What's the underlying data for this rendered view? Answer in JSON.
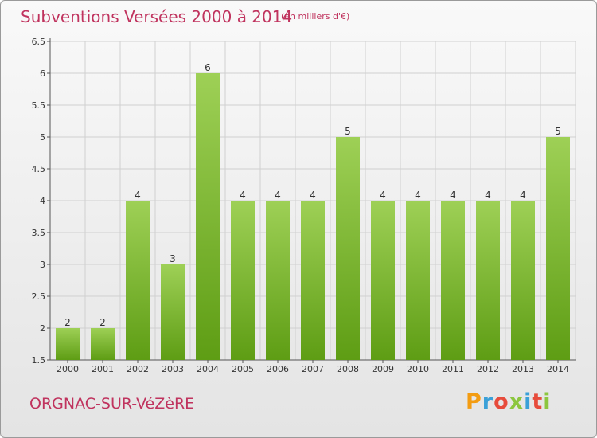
{
  "header": {
    "title": "Subventions Versées 2000 à 2014",
    "subtitle": "(en milliers d'€)"
  },
  "footer": {
    "town": "ORGNAC-SUR-VéZèRE",
    "logo_text": "Proxiti",
    "logo_colors": [
      "#f39c12",
      "#3aa0d8",
      "#e74c3c",
      "#8cc63f",
      "#3aa0d8",
      "#e74c3c",
      "#8cc63f"
    ]
  },
  "colors": {
    "title": "#c0335e",
    "bar_light": "#9ed056",
    "bar_dark": "#5e9d14",
    "grid": "#d0d0d0",
    "axis": "#555555"
  },
  "chart_data": {
    "type": "bar",
    "title": "Subventions Versées 2000 à 2014",
    "subtitle": "(en milliers d'€)",
    "categories": [
      "2000",
      "2001",
      "2002",
      "2003",
      "2004",
      "2005",
      "2006",
      "2007",
      "2008",
      "2009",
      "2010",
      "2011",
      "2012",
      "2013",
      "2014"
    ],
    "values": [
      2,
      2,
      4,
      3,
      6,
      4,
      4,
      4,
      5,
      4,
      4,
      4,
      4,
      4,
      5
    ],
    "data_labels": [
      "2",
      "2",
      "4",
      "3",
      "6",
      "4",
      "4",
      "4",
      "5",
      "4",
      "4",
      "4",
      "4",
      "4",
      "5"
    ],
    "ylim": [
      1.5,
      6.5
    ],
    "yticks": [
      1.5,
      2,
      2.5,
      3,
      3.5,
      4,
      4.5,
      5,
      5.5,
      6,
      6.5
    ],
    "ytick_labels": [
      "1.5",
      "2",
      "2.5",
      "3",
      "3.5",
      "4",
      "4.5",
      "5",
      "5.5",
      "6",
      "6.5"
    ],
    "grid": true,
    "xlabel": "",
    "ylabel": ""
  }
}
